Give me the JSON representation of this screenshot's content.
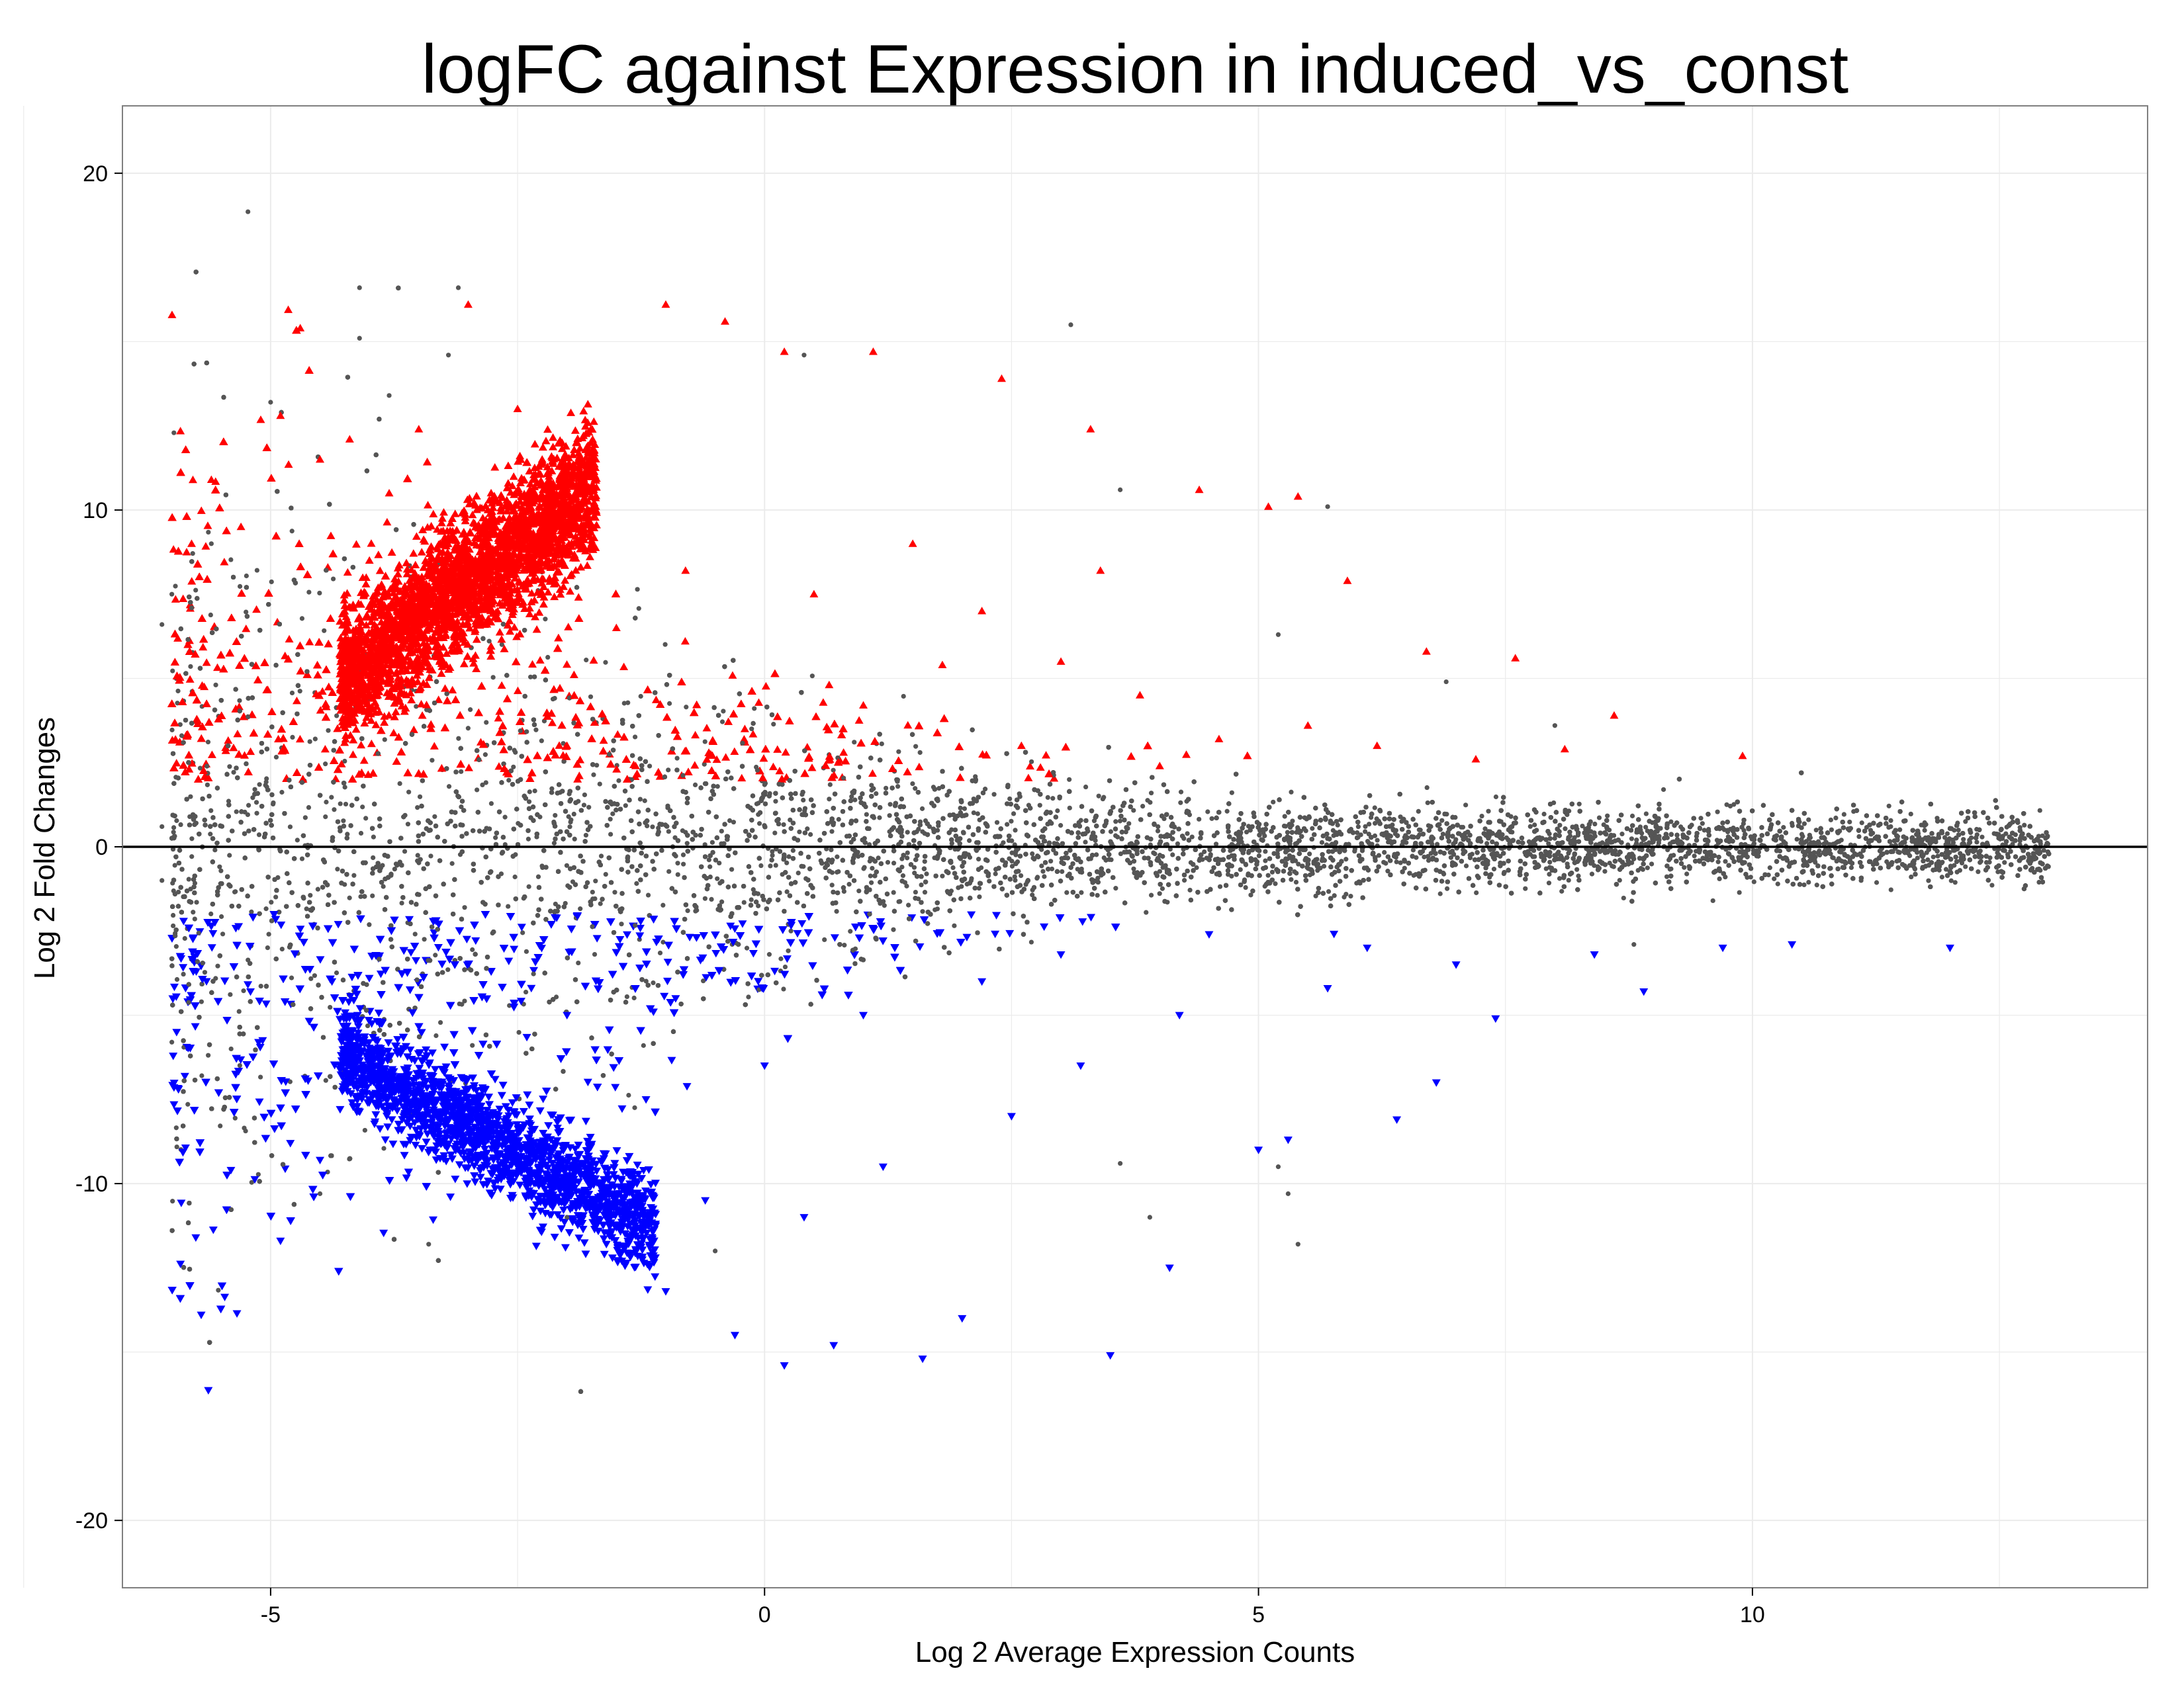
{
  "chart_data": {
    "type": "scatter",
    "title": "logFC against Expression in induced_vs_const",
    "xlabel": "Log 2 Average Expression Counts",
    "ylabel": "Log 2 Fold Changes",
    "xlim": [
      -6.5,
      14.0
    ],
    "ylim": [
      -22,
      22
    ],
    "x_ticks": [
      -5,
      0,
      5,
      10
    ],
    "y_ticks": [
      20,
      10,
      0,
      -10,
      -20
    ],
    "x_tick_labels": [
      "-5",
      "0",
      "5",
      "10"
    ],
    "y_tick_labels": [
      "20",
      "10",
      "0",
      "-10",
      "-20"
    ],
    "grid": true,
    "reference_line_y": 0,
    "legend": "none",
    "colors": {
      "not_significant": "#555555",
      "up": "#ff0000",
      "down": "#0000ff",
      "grid": "#ebebeb",
      "panel_border": "#7f7f7f"
    },
    "series": [
      {
        "marker": "triangle-up",
        "color": "#ff0000",
        "points": [
          [
            -4.7,
            15.4
          ],
          [
            -4.9,
            12.8
          ],
          [
            -5.6,
            10.9
          ],
          [
            -5.8,
            9.0
          ],
          [
            -5.3,
            9.5
          ],
          [
            -4.5,
            11.5
          ],
          [
            -4.2,
            12.1
          ],
          [
            -3.8,
            10.5
          ],
          [
            -3.5,
            12.4
          ],
          [
            -3.0,
            16.1
          ],
          [
            -2.5,
            13.0
          ],
          [
            -1.0,
            16.1
          ],
          [
            -0.4,
            15.6
          ],
          [
            0.2,
            14.7
          ],
          [
            1.1,
            14.7
          ],
          [
            2.4,
            13.9
          ],
          [
            3.3,
            12.4
          ],
          [
            4.4,
            10.6
          ],
          [
            5.1,
            10.1
          ],
          [
            5.4,
            10.4
          ],
          [
            5.9,
            7.9
          ],
          [
            6.7,
            5.8
          ],
          [
            7.6,
            5.6
          ],
          [
            8.6,
            3.9
          ],
          [
            9.9,
            2.7
          ],
          [
            -4.0,
            8.5
          ],
          [
            -3.6,
            7.0
          ],
          [
            -3.2,
            9.2
          ],
          [
            -2.8,
            10.0
          ],
          [
            -2.3,
            10.8
          ],
          [
            -1.8,
            11.3
          ],
          [
            -4.1,
            5.0
          ],
          [
            -3.3,
            6.2
          ],
          [
            -2.6,
            7.8
          ],
          [
            -1.5,
            6.5
          ],
          [
            -0.8,
            8.2
          ],
          [
            0.5,
            7.5
          ],
          [
            1.5,
            9.0
          ],
          [
            2.2,
            7.0
          ],
          [
            3.0,
            5.5
          ],
          [
            3.8,
            4.5
          ],
          [
            4.6,
            3.2
          ],
          [
            5.5,
            3.6
          ],
          [
            6.2,
            3.0
          ],
          [
            7.2,
            2.6
          ],
          [
            8.1,
            2.9
          ],
          [
            -0.2,
            3.5
          ],
          [
            1.0,
            4.2
          ],
          [
            2.6,
            3.0
          ],
          [
            4.0,
            2.4
          ],
          [
            -3.9,
            4.0
          ],
          [
            -2.0,
            3.0
          ],
          [
            0.8,
            2.8
          ],
          [
            1.8,
            5.4
          ],
          [
            3.4,
            8.2
          ]
        ]
      },
      {
        "marker": "triangle-down",
        "color": "#0000ff",
        "points": [
          [
            -4.9,
            -11.7
          ],
          [
            -4.8,
            -8.8
          ],
          [
            -4.5,
            -9.3
          ],
          [
            -4.3,
            -6.5
          ],
          [
            -3.9,
            -6.3
          ],
          [
            -3.5,
            -6.8
          ],
          [
            -3.0,
            -8.0
          ],
          [
            -2.5,
            -9.5
          ],
          [
            -2.0,
            -10.5
          ],
          [
            -1.5,
            -11.3
          ],
          [
            -1.0,
            -13.2
          ],
          [
            -0.3,
            -14.5
          ],
          [
            0.2,
            -15.4
          ],
          [
            0.7,
            -14.8
          ],
          [
            1.6,
            -15.2
          ],
          [
            2.0,
            -14.0
          ],
          [
            3.5,
            -15.1
          ],
          [
            4.1,
            -12.5
          ],
          [
            5.0,
            -9.0
          ],
          [
            5.3,
            -8.7
          ],
          [
            6.4,
            -8.1
          ],
          [
            6.8,
            -7.0
          ],
          [
            7.4,
            -5.1
          ],
          [
            8.4,
            -3.2
          ],
          [
            8.9,
            -4.3
          ],
          [
            10.4,
            -2.9
          ],
          [
            12.0,
            -3.0
          ],
          [
            9.7,
            -3.0
          ],
          [
            -3.2,
            -7.4
          ],
          [
            -2.8,
            -8.7
          ],
          [
            -2.2,
            -9.8
          ],
          [
            -1.7,
            -10.9
          ],
          [
            -1.3,
            -12.0
          ],
          [
            -0.6,
            -10.5
          ],
          [
            0.4,
            -11.0
          ],
          [
            1.2,
            -9.5
          ],
          [
            2.5,
            -8.0
          ],
          [
            3.2,
            -6.5
          ],
          [
            4.2,
            -5.0
          ],
          [
            5.7,
            -4.2
          ],
          [
            6.1,
            -3.0
          ],
          [
            7.0,
            -3.5
          ],
          [
            -0.9,
            -4.5
          ],
          [
            0.0,
            -6.5
          ],
          [
            1.0,
            -5.0
          ],
          [
            2.2,
            -4.0
          ],
          [
            3.0,
            -3.2
          ],
          [
            4.5,
            -2.6
          ],
          [
            -2.0,
            -5.0
          ],
          [
            -1.2,
            -7.5
          ]
        ]
      },
      {
        "marker": "circle",
        "color": "#555555",
        "points": [
          [
            -4.1,
            16.6
          ],
          [
            -3.1,
            16.6
          ],
          [
            -4.1,
            15.1
          ],
          [
            -3.2,
            14.6
          ],
          [
            3.1,
            15.5
          ],
          [
            -5.0,
            13.2
          ],
          [
            -3.8,
            13.4
          ],
          [
            0.4,
            14.6
          ],
          [
            -6.1,
            6.6
          ],
          [
            -6.0,
            7.5
          ],
          [
            -5.6,
            9.0
          ],
          [
            -5.9,
            3.3
          ],
          [
            -6.1,
            0.6
          ],
          [
            -6.1,
            -1.0
          ],
          [
            -6.0,
            -5.8
          ],
          [
            -5.7,
            -4.6
          ],
          [
            -5.4,
            -6.0
          ],
          [
            -4.5,
            -10.3
          ],
          [
            -3.4,
            -11.8
          ],
          [
            3.6,
            10.6
          ],
          [
            5.7,
            10.1
          ],
          [
            5.2,
            6.3
          ],
          [
            6.9,
            4.9
          ],
          [
            8.0,
            3.6
          ],
          [
            9.1,
            1.7
          ],
          [
            10.4,
            0.7
          ],
          [
            10.9,
            0.2
          ],
          [
            11.4,
            0.6
          ],
          [
            12.1,
            -0.7
          ],
          [
            12.9,
            -0.1
          ],
          [
            11.1,
            -1.0
          ],
          [
            9.6,
            -1.6
          ],
          [
            8.8,
            -2.9
          ],
          [
            5.2,
            -9.5
          ],
          [
            5.3,
            -10.3
          ],
          [
            5.4,
            -11.8
          ],
          [
            3.9,
            -11.0
          ],
          [
            3.6,
            -9.4
          ],
          [
            -0.5,
            -12.0
          ],
          [
            -2.0,
            -11.0
          ]
        ]
      }
    ]
  }
}
